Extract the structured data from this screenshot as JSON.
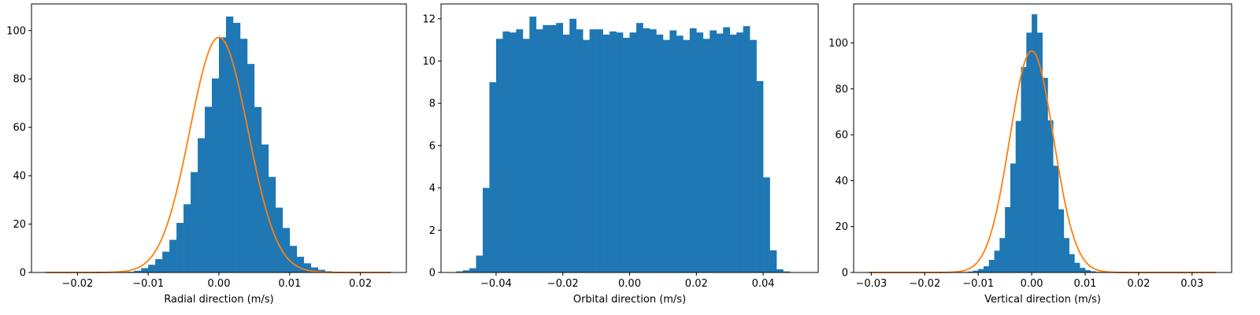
{
  "figure": {
    "bar_color": "#1f77b4",
    "fit_color": "#ff7f0e",
    "background": "#ffffff"
  },
  "chart_data": [
    {
      "type": "bar",
      "title": "",
      "xlabel": "Radial direction (m/s)",
      "ylabel": "",
      "xlim": [
        -0.0265,
        0.0265
      ],
      "ylim": [
        0,
        111
      ],
      "xticks": [
        -0.02,
        -0.01,
        0.0,
        0.01,
        0.02
      ],
      "xtick_labels": [
        "−0.02",
        "−0.01",
        "0.00",
        "0.01",
        "0.02"
      ],
      "yticks": [
        0,
        20,
        40,
        60,
        80,
        100
      ],
      "ytick_labels": [
        "0",
        "20",
        "40",
        "60",
        "80",
        "100"
      ],
      "grid": false,
      "series": [
        {
          "kind": "histogram",
          "bin_width": 0.001,
          "bin_edges_start": -0.013,
          "values": [
            0.3,
            0.7,
            1.8,
            3.2,
            5.5,
            8.6,
            13.5,
            20.5,
            28.2,
            41.5,
            55.5,
            68.5,
            80.2,
            97.2,
            105.8,
            103.2,
            96.6,
            86.2,
            68.4,
            52.9,
            39.5,
            26.8,
            18.4,
            11,
            6.5,
            3.8,
            2.1,
            1.1,
            0.5,
            0.2
          ]
        },
        {
          "kind": "gaussian_fit",
          "mean": 0.0,
          "peak": 97.2,
          "sigma": 0.0041,
          "x_range": [
            -0.0245,
            0.0243
          ]
        }
      ]
    },
    {
      "type": "bar",
      "title": "",
      "xlabel": "Orbital direction (m/s)",
      "ylabel": "",
      "xlim": [
        -0.0565,
        0.0565
      ],
      "ylim": [
        0,
        12.7
      ],
      "xticks": [
        -0.04,
        -0.02,
        0.0,
        0.02,
        0.04
      ],
      "xtick_labels": [
        "−0.04",
        "−0.02",
        "0.00",
        "0.02",
        "0.04"
      ],
      "yticks": [
        0,
        2,
        4,
        6,
        8,
        10,
        12
      ],
      "ytick_labels": [
        "0",
        "2",
        "4",
        "6",
        "8",
        "10",
        "12"
      ],
      "grid": false,
      "series": [
        {
          "kind": "histogram",
          "bin_width": 0.002,
          "bin_edges_start": -0.052,
          "values": [
            0.05,
            0.1,
            0.2,
            0.8,
            4.0,
            9.0,
            11.05,
            11.4,
            11.35,
            11.5,
            11.05,
            12.1,
            11.5,
            11.7,
            11.7,
            11.8,
            11.25,
            12.0,
            11.5,
            11.0,
            11.5,
            11.5,
            11.25,
            11.4,
            11.35,
            11.1,
            11.35,
            11.8,
            11.55,
            11.5,
            11.25,
            11.0,
            11.45,
            11.2,
            11.0,
            11.55,
            11.35,
            11.05,
            11.45,
            11.3,
            11.6,
            11.25,
            11.35,
            11.65,
            11.0,
            9.05,
            4.5,
            1.05,
            0.15,
            0.05
          ]
        }
      ]
    },
    {
      "type": "bar",
      "title": "",
      "xlabel": "Vertical direction (m/s)",
      "ylabel": "",
      "xlim": [
        -0.0333,
        0.0374
      ],
      "ylim": [
        0,
        117
      ],
      "xticks": [
        -0.03,
        -0.02,
        -0.01,
        0.0,
        0.01,
        0.02,
        0.03
      ],
      "xtick_labels": [
        "−0.03",
        "−0.02",
        "−0.01",
        "0.00",
        "0.01",
        "0.02",
        "0.03"
      ],
      "yticks": [
        0,
        20,
        40,
        60,
        80,
        100
      ],
      "ytick_labels": [
        "0",
        "20",
        "40",
        "60",
        "80",
        "100"
      ],
      "grid": false,
      "series": [
        {
          "kind": "histogram",
          "bin_width": 0.001,
          "bin_edges_start": -0.015,
          "values": [
            0.05,
            0.1,
            0.2,
            0.4,
            0.8,
            1.5,
            2.7,
            5.5,
            9.5,
            15.0,
            28.5,
            47.5,
            66.0,
            89.5,
            104.5,
            112.5,
            104.5,
            84.8,
            66.3,
            46.5,
            27.5,
            15.0,
            8.0,
            4.2,
            2.0,
            1.0,
            0.5,
            0.25,
            0.1,
            0.05
          ]
        },
        {
          "kind": "gaussian_fit",
          "mean": 0.0,
          "peak": 96.5,
          "sigma": 0.0041,
          "x_range": [
            -0.0305,
            0.0345
          ]
        }
      ]
    }
  ]
}
